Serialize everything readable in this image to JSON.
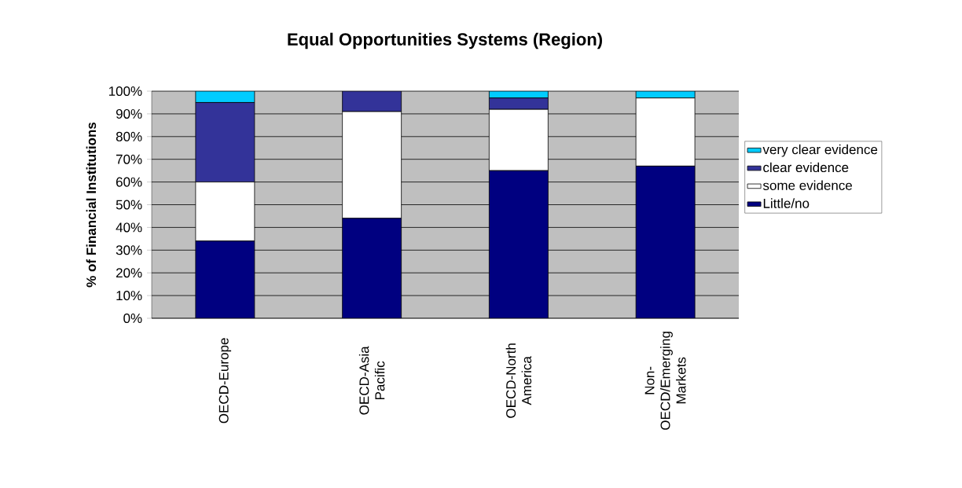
{
  "chart_data": {
    "type": "bar",
    "stacked": true,
    "title": "Equal Opportunities Systems (Region)",
    "ylabel": "% of Financial Institutions",
    "categories": [
      "OECD-Europe",
      "OECD-Asia Pacific",
      "OECD-North America",
      "Non-OECD/Emerging Markets"
    ],
    "series": [
      {
        "name": "Little/no",
        "color": "#000080",
        "values": [
          34,
          44,
          65,
          67
        ]
      },
      {
        "name": "some evidence",
        "color": "#ffffff",
        "values": [
          26,
          47,
          27,
          30
        ]
      },
      {
        "name": "clear evidence",
        "color": "#333399",
        "values": [
          35,
          9,
          5,
          0
        ]
      },
      {
        "name": "very clear evidence",
        "color": "#00ccff",
        "values": [
          5,
          0,
          3,
          3
        ]
      }
    ],
    "ylim": [
      0,
      100
    ],
    "yticks": [
      {
        "value": 0,
        "label": "0%"
      },
      {
        "value": 10,
        "label": "10%"
      },
      {
        "value": 20,
        "label": "20%"
      },
      {
        "value": 30,
        "label": "30%"
      },
      {
        "value": 40,
        "label": "40%"
      },
      {
        "value": 50,
        "label": "50%"
      },
      {
        "value": 60,
        "label": "60%"
      },
      {
        "value": 70,
        "label": "70%"
      },
      {
        "value": 80,
        "label": "80%"
      },
      {
        "value": 90,
        "label": "90%"
      },
      {
        "value": 100,
        "label": "100%"
      }
    ],
    "grid": "y",
    "legend": "right"
  }
}
